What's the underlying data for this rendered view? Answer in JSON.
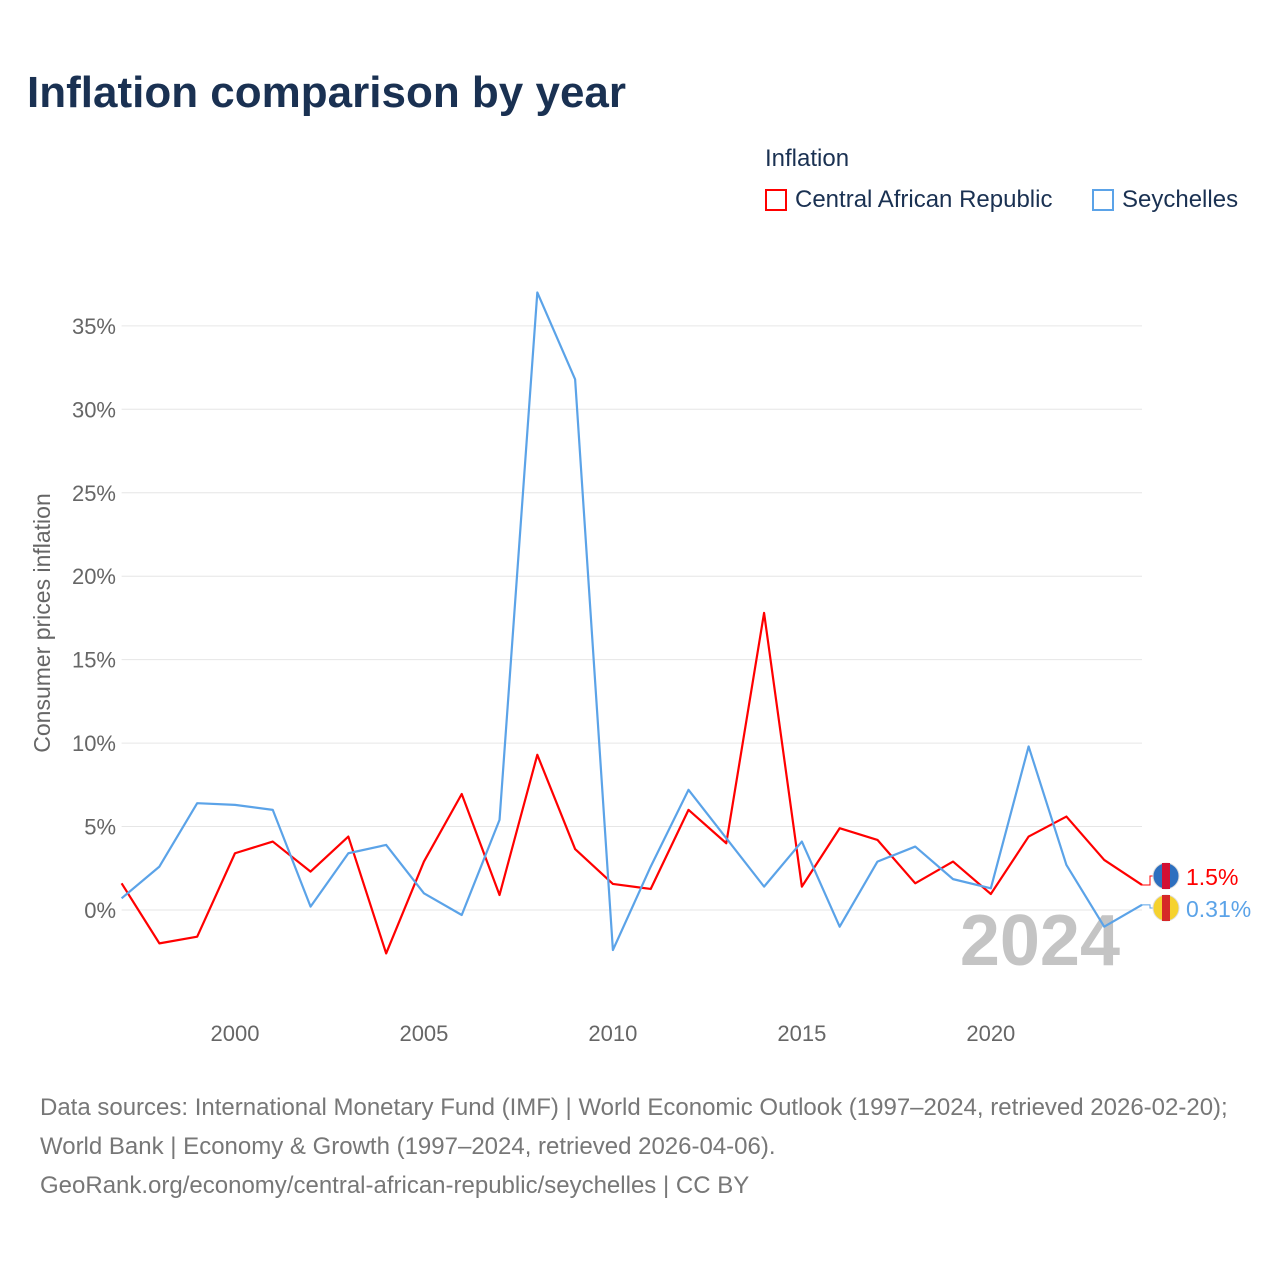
{
  "chart_data": {
    "type": "line",
    "title": "Inflation comparison by year",
    "legend_title": "Inflation",
    "legend_placement": "top-right",
    "ylabel": "Consumer prices inflation",
    "xlabel": "",
    "xlim": [
      1997,
      2024
    ],
    "ylim": [
      -5,
      37
    ],
    "x_ticks": [
      2000,
      2005,
      2010,
      2015,
      2020
    ],
    "y_ticks": [
      0,
      5,
      10,
      15,
      20,
      25,
      30,
      35
    ],
    "y_tick_labels": [
      "0%",
      "5%",
      "10%",
      "15%",
      "20%",
      "25%",
      "30%",
      "35%"
    ],
    "x": [
      1997,
      1998,
      1999,
      2000,
      2001,
      2002,
      2003,
      2004,
      2005,
      2006,
      2007,
      2008,
      2009,
      2010,
      2011,
      2012,
      2013,
      2014,
      2015,
      2016,
      2017,
      2018,
      2019,
      2020,
      2021,
      2022,
      2023,
      2024
    ],
    "series": [
      {
        "name": "Central African Republic",
        "color": "#ff0000",
        "end_label": "1.5%",
        "values": [
          1.6,
          -2.0,
          -1.6,
          3.4,
          4.1,
          2.3,
          4.4,
          -2.6,
          2.9,
          6.95,
          0.9,
          9.3,
          3.65,
          1.56,
          1.26,
          6.0,
          4.0,
          17.8,
          1.4,
          4.9,
          4.2,
          1.6,
          2.9,
          0.96,
          4.4,
          5.6,
          3.0,
          1.5
        ]
      },
      {
        "name": "Seychelles",
        "color": "#5ba3e8",
        "end_label": "0.31%",
        "values": [
          0.7,
          2.6,
          6.4,
          6.3,
          6.0,
          0.2,
          3.4,
          3.9,
          1.0,
          -0.3,
          5.4,
          37.0,
          31.8,
          -2.4,
          2.6,
          7.2,
          4.3,
          1.4,
          4.1,
          -1.0,
          2.9,
          3.8,
          1.85,
          1.3,
          9.8,
          2.7,
          -1.0,
          0.31
        ]
      }
    ],
    "year_watermark": "2024",
    "grid": true
  },
  "footer": {
    "sources": "Data sources: International Monetary Fund (IMF) | World Economic Outlook (1997–2024, retrieved 2026-02-20); World Bank | Economy & Growth (1997–2024, retrieved 2026-04-06).",
    "link": "GeoRank.org/economy/central-african-republic/seychelles | CC BY"
  }
}
